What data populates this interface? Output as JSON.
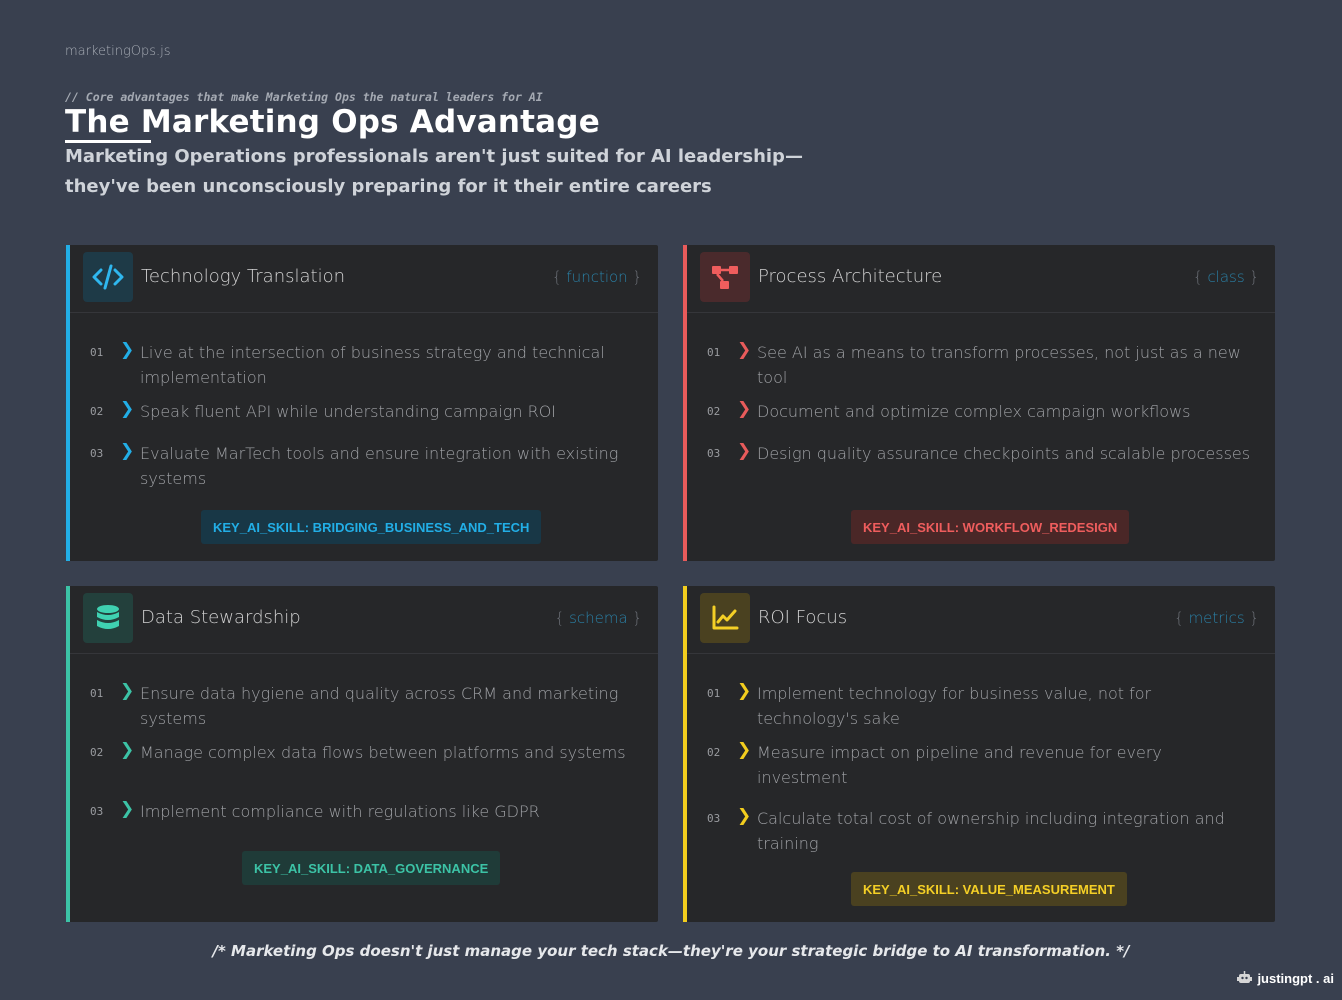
{
  "brand": "marketingOps.js",
  "comment": "// Core advantages that make Marketing Ops the natural leaders for AI",
  "title": "The Marketing Ops Advantage",
  "subtitle": "Marketing Operations professionals aren't just suited for AI leadership—they've been unconsciously preparing for it their entire careers",
  "cards": [
    {
      "title": "Technology Translation",
      "tag": "function",
      "icon": "code-icon",
      "accent": "#22aee6",
      "items": [
        {
          "num": "01",
          "text": "Live at the intersection of business strategy and technical implementation"
        },
        {
          "num": "02",
          "text": "Speak fluent API while understanding campaign ROI"
        },
        {
          "num": "03",
          "text": "Evaluate MarTech tools and ensure integration with existing systems"
        }
      ],
      "skill": "KEY_AI_SKILL: BRIDGING_BUSINESS_AND_TECH"
    },
    {
      "title": "Process Architecture",
      "tag": "class",
      "icon": "workflow-icon",
      "accent": "#e85b5b",
      "items": [
        {
          "num": "01",
          "text": "See AI as a means to transform processes, not just as a new tool"
        },
        {
          "num": "02",
          "text": "Document and optimize complex campaign workflows"
        },
        {
          "num": "03",
          "text": "Design quality assurance checkpoints and scalable processes"
        }
      ],
      "skill": "KEY_AI_SKILL: WORKFLOW_REDESIGN"
    },
    {
      "title": "Data Stewardship",
      "tag": "schema",
      "icon": "database-icon",
      "accent": "#3cc3a6",
      "items": [
        {
          "num": "01",
          "text": "Ensure data hygiene and quality across CRM and marketing systems"
        },
        {
          "num": "02",
          "text": "Manage complex data flows between platforms and systems"
        },
        {
          "num": "03",
          "text": "Implement compliance with regulations like GDPR"
        }
      ],
      "skill": "KEY_AI_SKILL: DATA_GOVERNANCE"
    },
    {
      "title": "ROI Focus",
      "tag": "metrics",
      "icon": "line-chart-icon",
      "accent": "#f2cd1e",
      "items": [
        {
          "num": "01",
          "text": "Implement technology for business value, not for technology's sake"
        },
        {
          "num": "02",
          "text": "Measure impact on pipeline and revenue for every investment"
        },
        {
          "num": "03",
          "text": "Calculate total cost of ownership including integration and training"
        }
      ],
      "skill": "KEY_AI_SKILL: VALUE_MEASUREMENT"
    }
  ],
  "footer": "/* Marketing Ops doesn't just manage your tech stack—they're your strategic bridge to AI transformation. */",
  "signature": "justingpt . ai"
}
